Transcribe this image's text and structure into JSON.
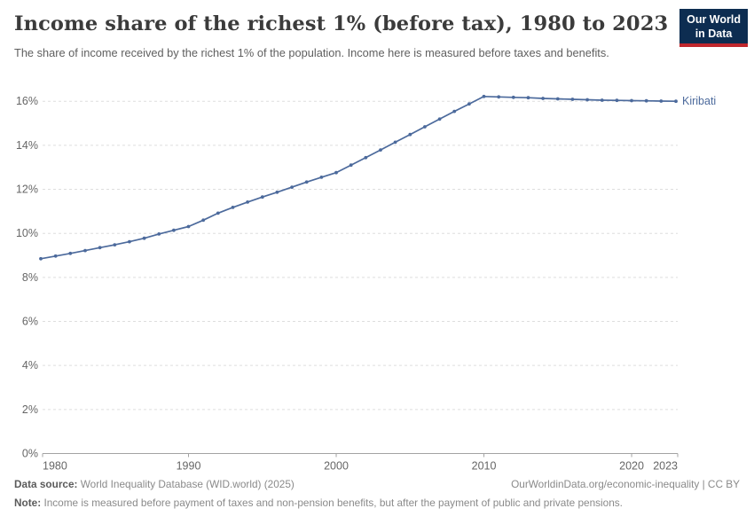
{
  "header": {
    "title": "Income share of the richest 1% (before tax), 1980 to 2023",
    "subtitle": "The share of income received by the richest 1% of the population. Income here is measured before taxes and benefits.",
    "logo": {
      "line1": "Our World",
      "line2": "in Data",
      "bg_color": "#0d2d51",
      "accent_color": "#c0272d"
    }
  },
  "chart_data": {
    "type": "line",
    "title": "Income share of the richest 1% (before tax), 1980 to 2023",
    "xlabel": "",
    "ylabel": "",
    "grid": "horizontal-dashed",
    "xlim": [
      1980,
      2023
    ],
    "ylim": [
      0,
      16.8
    ],
    "x_ticks": [
      1980,
      1990,
      2000,
      2010,
      2020,
      2023
    ],
    "y_ticks": [
      0,
      2,
      4,
      6,
      8,
      10,
      12,
      14,
      16
    ],
    "y_tick_suffix": "%",
    "line_color": "#4c6a9c",
    "end_label": "Kiribati",
    "series": [
      {
        "name": "Kiribati",
        "x": [
          1980,
          1981,
          1982,
          1983,
          1984,
          1985,
          1986,
          1987,
          1988,
          1989,
          1990,
          1991,
          1992,
          1993,
          1994,
          1995,
          1996,
          1997,
          1998,
          1999,
          2000,
          2001,
          2002,
          2003,
          2004,
          2005,
          2006,
          2007,
          2008,
          2009,
          2010,
          2011,
          2012,
          2013,
          2014,
          2015,
          2016,
          2017,
          2018,
          2019,
          2020,
          2021,
          2022,
          2023
        ],
        "values": [
          8.85,
          8.97,
          9.09,
          9.22,
          9.35,
          9.48,
          9.62,
          9.78,
          9.97,
          10.14,
          10.31,
          10.6,
          10.92,
          11.18,
          11.42,
          11.65,
          11.87,
          12.1,
          12.33,
          12.55,
          12.76,
          13.1,
          13.44,
          13.79,
          14.14,
          14.49,
          14.84,
          15.19,
          15.54,
          15.88,
          16.22,
          16.2,
          16.18,
          16.16,
          16.13,
          16.11,
          16.09,
          16.07,
          16.05,
          16.04,
          16.03,
          16.02,
          16.01,
          16.0
        ]
      }
    ]
  },
  "footer": {
    "datasource_label": "Data source:",
    "datasource_text": "World Inequality Database (WID.world) (2025)",
    "link_text": "OurWorldinData.org/economic-inequality | CC BY",
    "note_label": "Note:",
    "note_text": "Income is measured before payment of taxes and non-pension benefits, but after the payment of public and private pensions."
  }
}
